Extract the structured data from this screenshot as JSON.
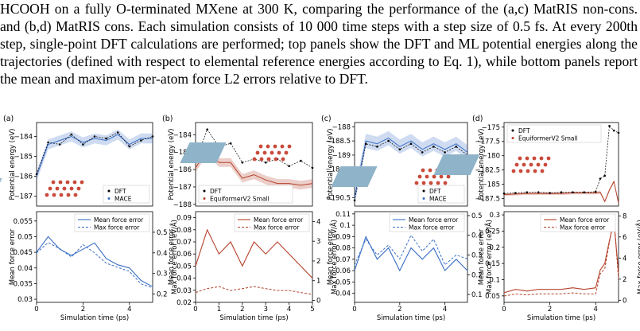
{
  "caption": {
    "text": "HCOOH on a fully O-terminated MXene at 300 K, comparing the performance of the (a,c) MatRIS non-cons. and (b,d) MatRIS cons. Each simulation consists of 10 000 time steps with a step size of 0.5 fs. At every 200th step, single-point DFT calculations are performed; top panels show the DFT and ML potential energies along the trajectories (defined with respect to elemental reference energies according to Eq. 1), while bottom panels report the mean and maximum per-atom force L2 errors relative to DFT."
  },
  "labels": {
    "energy_ylabel": "Potential energy (eV)",
    "mean_force_ylabel": "Mean force error",
    "max_force_ylabel": "Max force error (eV/Å)",
    "xlabel": "Simulation time (ps)",
    "legend_dft": "DFT",
    "legend_mean": "Mean force error",
    "legend_max": "Max force error"
  },
  "colors": {
    "mace_blue": "#3a6fc6",
    "equiformer_red": "#b5412a",
    "dft_black": "#000000"
  },
  "chart_data": [
    {
      "panel": "(a)",
      "type": "line",
      "model": "MACE",
      "energy_yticks": [
        -187,
        -186,
        -185,
        -184
      ],
      "energy_ylim": [
        -187.5,
        -183.3
      ],
      "time_ps": [
        0,
        0.5,
        1,
        1.5,
        2,
        2.5,
        3,
        3.5,
        4,
        4.5,
        5
      ],
      "dft_energy": [
        -185.9,
        -184.3,
        -184.4,
        -183.9,
        -184.4,
        -184.0,
        -184.1,
        -183.8,
        -184.5,
        -184.2,
        -184.0
      ],
      "ml_energy": [
        -186.0,
        -184.4,
        -184.2,
        -184.0,
        -184.3,
        -184.1,
        -184.2,
        -183.9,
        -184.4,
        -184.1,
        -184.1
      ],
      "force_left_yticks": [
        0.03,
        0.035,
        0.04,
        0.045,
        0.05,
        0.055
      ],
      "force_left_ylim": [
        0.029,
        0.058
      ],
      "force_right_yticks": [
        0.2,
        0.3,
        0.4,
        0.5
      ],
      "force_right_ylim": [
        0.16,
        0.6
      ],
      "mean_force": [
        0.045,
        0.05,
        0.046,
        0.044,
        0.046,
        0.048,
        0.043,
        0.041,
        0.04,
        0.036,
        0.034
      ],
      "max_force": [
        0.4,
        0.45,
        0.42,
        0.38,
        0.44,
        0.4,
        0.35,
        0.33,
        0.31,
        0.25,
        0.23
      ],
      "xticks": [
        0,
        2,
        4
      ]
    },
    {
      "panel": "(b)",
      "type": "line",
      "model": "EquiformerV2 Small",
      "energy_yticks": [
        -188,
        -187,
        -186,
        -185,
        -184
      ],
      "energy_ylim": [
        -188.1,
        -183.3
      ],
      "time_ps": [
        0,
        0.5,
        1,
        1.5,
        2,
        2.5,
        3,
        3.5,
        4,
        4.5,
        5
      ],
      "dft_energy": [
        -185.5,
        -183.7,
        -184.7,
        -184.5,
        -185.6,
        -185.4,
        -185.6,
        -185.4,
        -185.8,
        -185.5,
        -185.9
      ],
      "ml_energy": [
        -185.9,
        -184.9,
        -185.6,
        -185.6,
        -186.5,
        -186.3,
        -186.6,
        -186.8,
        -186.8,
        -186.9,
        -186.8
      ],
      "force_left_yticks": [
        0.02,
        0.03,
        0.04,
        0.05,
        0.06,
        0.07,
        0.08,
        0.09
      ],
      "force_left_ylim": [
        0.02,
        0.095
      ],
      "force_right_yticks": [
        0,
        1,
        2,
        3,
        4
      ],
      "force_right_ylim": [
        -0.1,
        4.5
      ],
      "mean_force": [
        0.05,
        0.08,
        0.06,
        0.07,
        0.05,
        0.07,
        0.06,
        0.07,
        0.06,
        0.05,
        0.04
      ],
      "max_force": [
        0.4,
        0.6,
        0.7,
        0.5,
        0.6,
        0.7,
        0.6,
        0.5,
        0.5,
        0.4,
        0.3
      ],
      "xticks": [
        0,
        1,
        2,
        3,
        4,
        5
      ]
    },
    {
      "panel": "(c)",
      "type": "line",
      "model": "MACE",
      "energy_yticks": [
        -190.5,
        -190.0,
        -189.5,
        -189.0,
        -188.5,
        -188.0
      ],
      "energy_ylim": [
        -190.8,
        -187.85
      ],
      "time_ps": [
        0,
        0.5,
        1,
        1.5,
        2,
        2.5,
        3,
        3.5,
        4,
        4.5,
        5
      ],
      "dft_energy": [
        -190.6,
        -188.6,
        -188.7,
        -188.5,
        -188.8,
        -188.6,
        -188.9,
        -188.7,
        -188.9,
        -188.7,
        -189.0
      ],
      "ml_energy": [
        -190.5,
        -188.5,
        -188.6,
        -188.4,
        -188.7,
        -188.5,
        -188.8,
        -188.6,
        -188.8,
        -188.6,
        -188.9
      ],
      "force_left_yticks": [
        0.04,
        0.05,
        0.06,
        0.07,
        0.08,
        0.09,
        0.1,
        0.11
      ],
      "force_left_ylim": [
        0.032,
        0.112
      ],
      "force_right_yticks": [
        0.1,
        0.2,
        0.3,
        0.4,
        0.5
      ],
      "force_right_ylim": [
        0.06,
        0.52
      ],
      "mean_force": [
        0.06,
        0.09,
        0.07,
        0.08,
        0.06,
        0.08,
        0.07,
        0.08,
        0.06,
        0.07,
        0.06
      ],
      "max_force": [
        0.25,
        0.38,
        0.3,
        0.35,
        0.28,
        0.4,
        0.32,
        0.38,
        0.25,
        0.3,
        0.28
      ],
      "xticks": [
        0,
        2,
        4
      ]
    },
    {
      "panel": "(d)",
      "type": "line",
      "model": "EquiformerV2 Small",
      "energy_yticks": [
        -187.5,
        -185.0,
        -182.5,
        -180.0,
        -177.5,
        -175.0
      ],
      "energy_ylim": [
        -188.8,
        -174.2
      ],
      "time_ps": [
        0,
        0.5,
        1,
        1.5,
        2,
        2.5,
        3,
        3.5,
        4,
        4.2,
        4.4,
        4.6,
        4.8,
        5
      ],
      "dft_energy": [
        -186.6,
        -186.5,
        -186.4,
        -186.4,
        -186.5,
        -186.4,
        -186.4,
        -186.4,
        -186.3,
        -184.0,
        -183.5,
        -174.8,
        -175.6,
        -176.0
      ],
      "ml_energy": [
        -186.8,
        -186.7,
        -186.6,
        -186.6,
        -186.6,
        -186.6,
        -186.5,
        -186.5,
        -186.5,
        -186.4,
        -188.0,
        -186.0,
        -184.5,
        -188.3
      ],
      "force_left_yticks": [
        0.05,
        0.1,
        0.15,
        0.2,
        0.25,
        0.3
      ],
      "force_left_ylim": [
        0.03,
        0.31
      ],
      "force_right_yticks": [
        0,
        2,
        4,
        6,
        8
      ],
      "force_right_ylim": [
        -0.2,
        8.4
      ],
      "mean_force": [
        0.06,
        0.07,
        0.065,
        0.07,
        0.07,
        0.07,
        0.075,
        0.07,
        0.075,
        0.13,
        0.15,
        0.22,
        0.28,
        0.12
      ],
      "max_force": [
        0.4,
        0.6,
        0.5,
        0.6,
        0.6,
        0.6,
        0.7,
        0.6,
        0.6,
        2.5,
        3.0,
        5.5,
        7.8,
        2.0
      ],
      "xticks": [
        0,
        2,
        4
      ]
    }
  ]
}
